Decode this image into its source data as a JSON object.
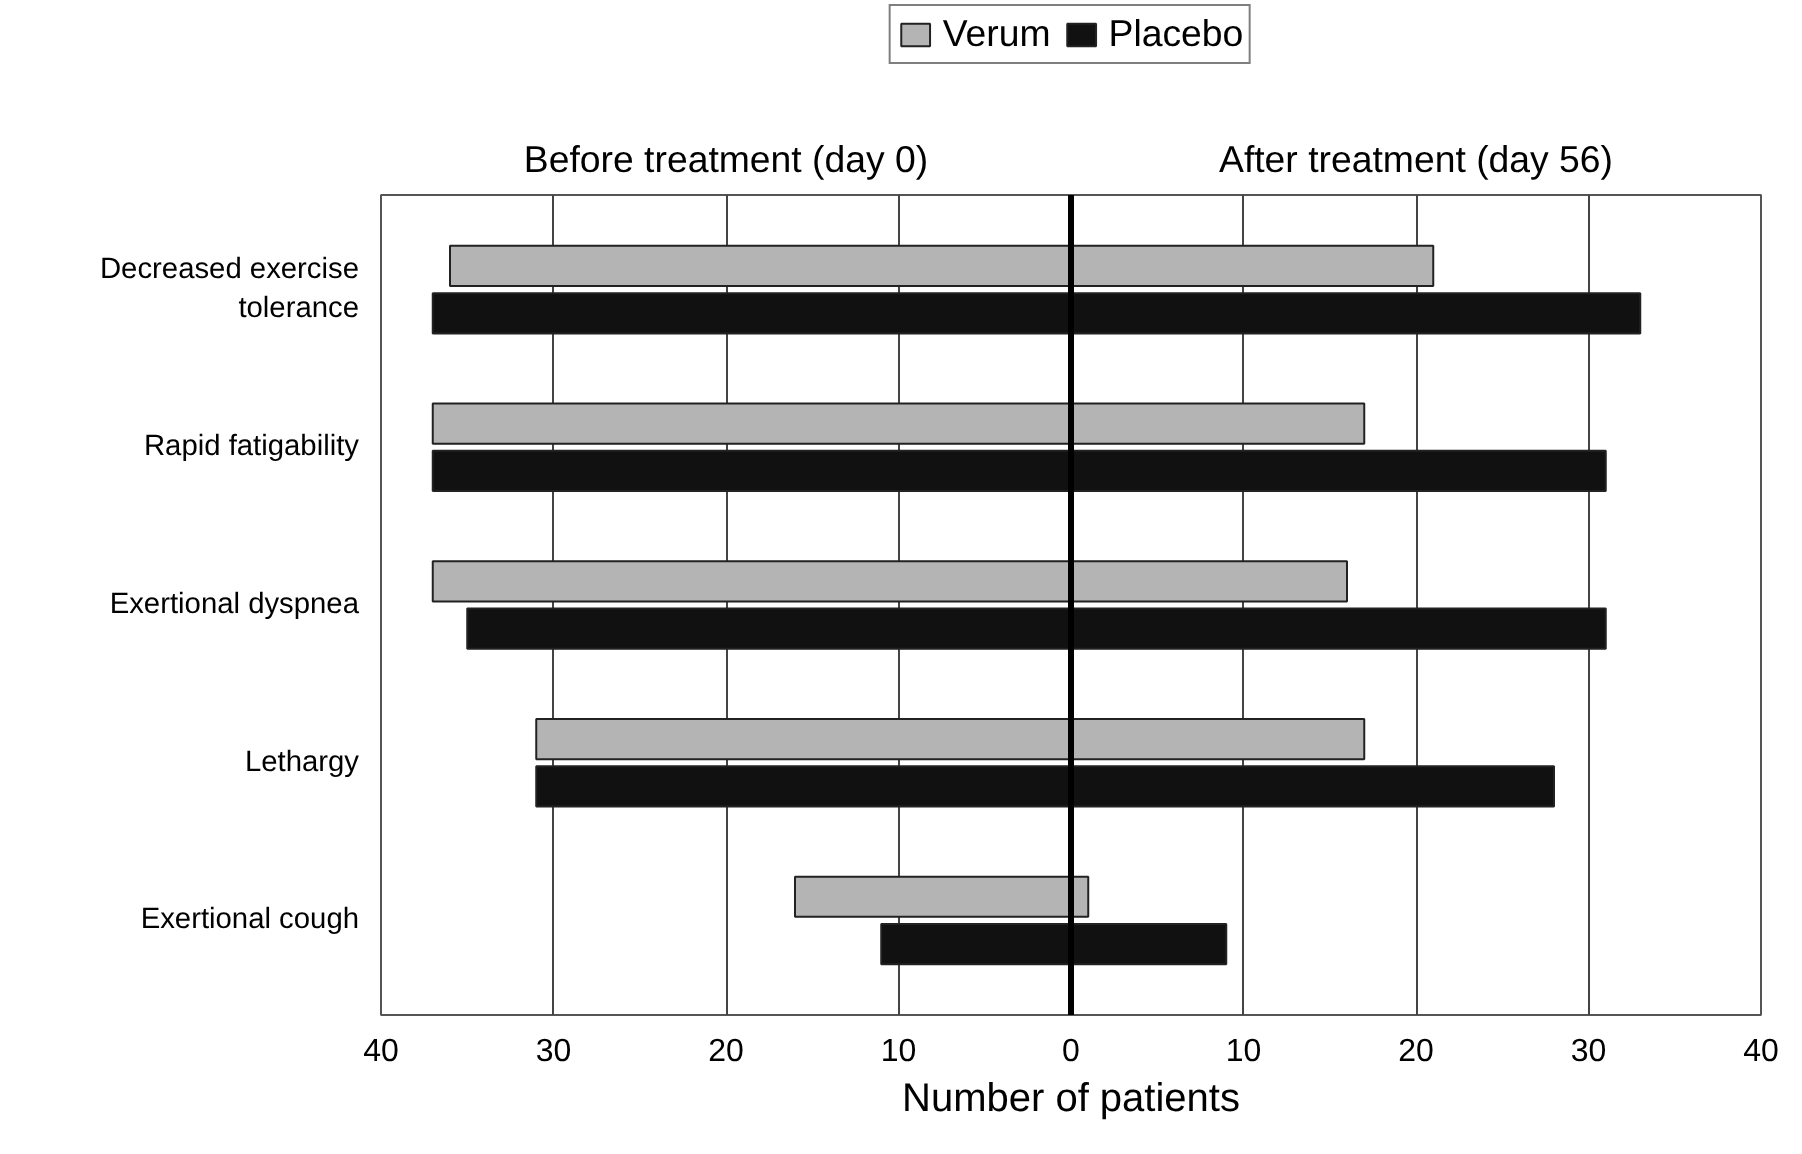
{
  "chart_data": {
    "type": "bar",
    "orientation": "horizontal",
    "xlabel": "Number of patients",
    "categories": [
      "Decreased exercise tolerance",
      "Rapid fatigability",
      "Exertional dyspnea",
      "Lethargy",
      "Exertional cough"
    ],
    "series": [
      {
        "name": "Verum",
        "color": "#b4b4b4",
        "base": [
          -36,
          -37,
          -37,
          -31,
          -16
        ],
        "values": [
          57,
          54,
          53,
          48,
          17
        ]
      },
      {
        "name": "Placebo",
        "color": "#111111",
        "base": [
          -37,
          -37,
          -35,
          -31,
          -11
        ],
        "values": [
          70,
          68,
          66,
          59,
          20
        ]
      }
    ],
    "xlim": [
      -40,
      40
    ],
    "xticks": [
      {
        "value": -40,
        "label": "40"
      },
      {
        "value": -30,
        "label": "30"
      },
      {
        "value": -20,
        "label": "20"
      },
      {
        "value": -10,
        "label": "10"
      },
      0,
      10,
      20,
      30,
      40
    ],
    "ref_lines": [
      {
        "axis": "x",
        "value": 0,
        "color": "#000000"
      }
    ],
    "annotations": [
      "Before treatment (day 0)",
      "After treatment (day 56)"
    ],
    "grid": "x",
    "legend": "top"
  }
}
